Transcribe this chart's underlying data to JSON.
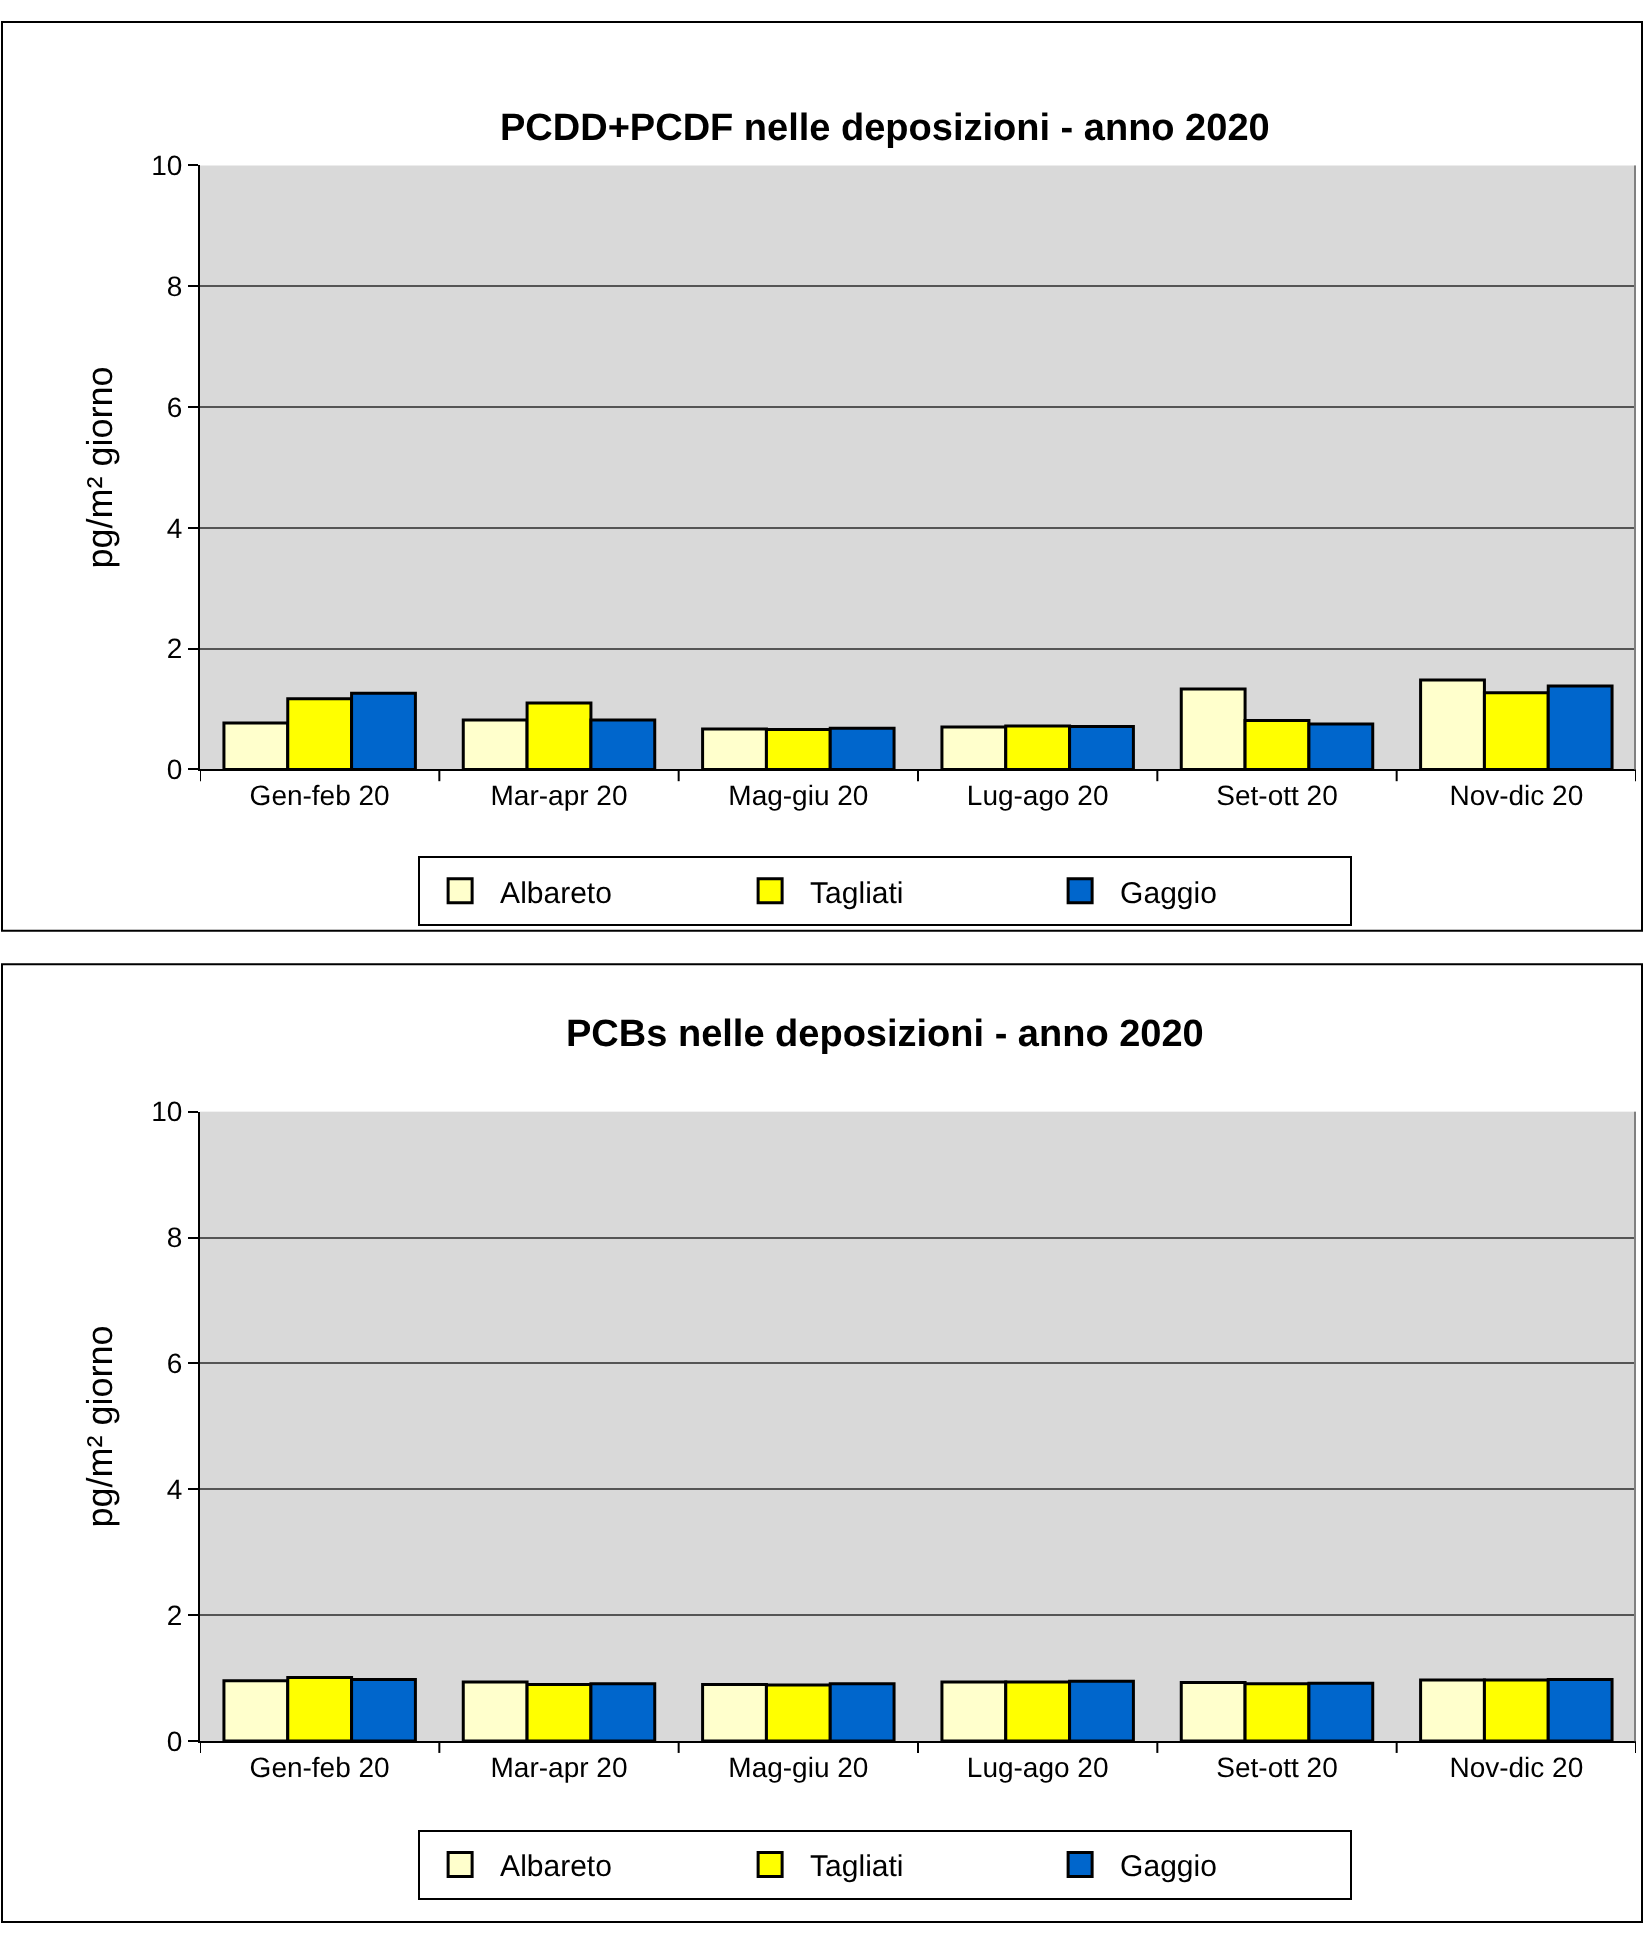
{
  "chart_data": [
    {
      "type": "bar",
      "title": "PCDD+PCDF nelle deposizioni - anno 2020",
      "ylabel": "pg/m² giorno",
      "categories": [
        "Gen-feb 20",
        "Mar-apr 20",
        "Mag-giu 20",
        "Lug-ago 20",
        "Set-ott 20",
        "Nov-dic 20"
      ],
      "series": [
        {
          "name": "Albareto",
          "color": "#ffffcc",
          "values": [
            0.77,
            0.82,
            0.67,
            0.7,
            1.33,
            1.48
          ]
        },
        {
          "name": "Tagliati",
          "color": "#ffff00",
          "values": [
            1.17,
            1.1,
            0.66,
            0.72,
            0.81,
            1.27
          ]
        },
        {
          "name": "Gaggio",
          "color": "#0066cc",
          "values": [
            1.26,
            0.82,
            0.68,
            0.71,
            0.75,
            1.38
          ]
        }
      ],
      "ylim": [
        0,
        10
      ],
      "yticks": [
        0,
        2,
        4,
        6,
        8,
        10
      ],
      "grid": "y",
      "legend": "bottom"
    },
    {
      "type": "bar",
      "title": "PCBs nelle deposizioni - anno 2020",
      "ylabel": "pg/m² giorno",
      "categories": [
        "Gen-feb 20",
        "Mar-apr 20",
        "Mag-giu 20",
        "Lug-ago 20",
        "Set-ott 20",
        "Nov-dic 20"
      ],
      "series": [
        {
          "name": "Albareto",
          "color": "#ffffcc",
          "values": [
            0.96,
            0.94,
            0.9,
            0.94,
            0.93,
            0.97
          ]
        },
        {
          "name": "Tagliati",
          "color": "#ffff00",
          "values": [
            1.01,
            0.9,
            0.89,
            0.94,
            0.91,
            0.97
          ]
        },
        {
          "name": "Gaggio",
          "color": "#0066cc",
          "values": [
            0.98,
            0.91,
            0.91,
            0.95,
            0.92,
            0.98
          ]
        }
      ],
      "ylim": [
        0,
        10
      ],
      "yticks": [
        0,
        2,
        4,
        6,
        8,
        10
      ],
      "grid": "y",
      "legend": "bottom"
    }
  ]
}
